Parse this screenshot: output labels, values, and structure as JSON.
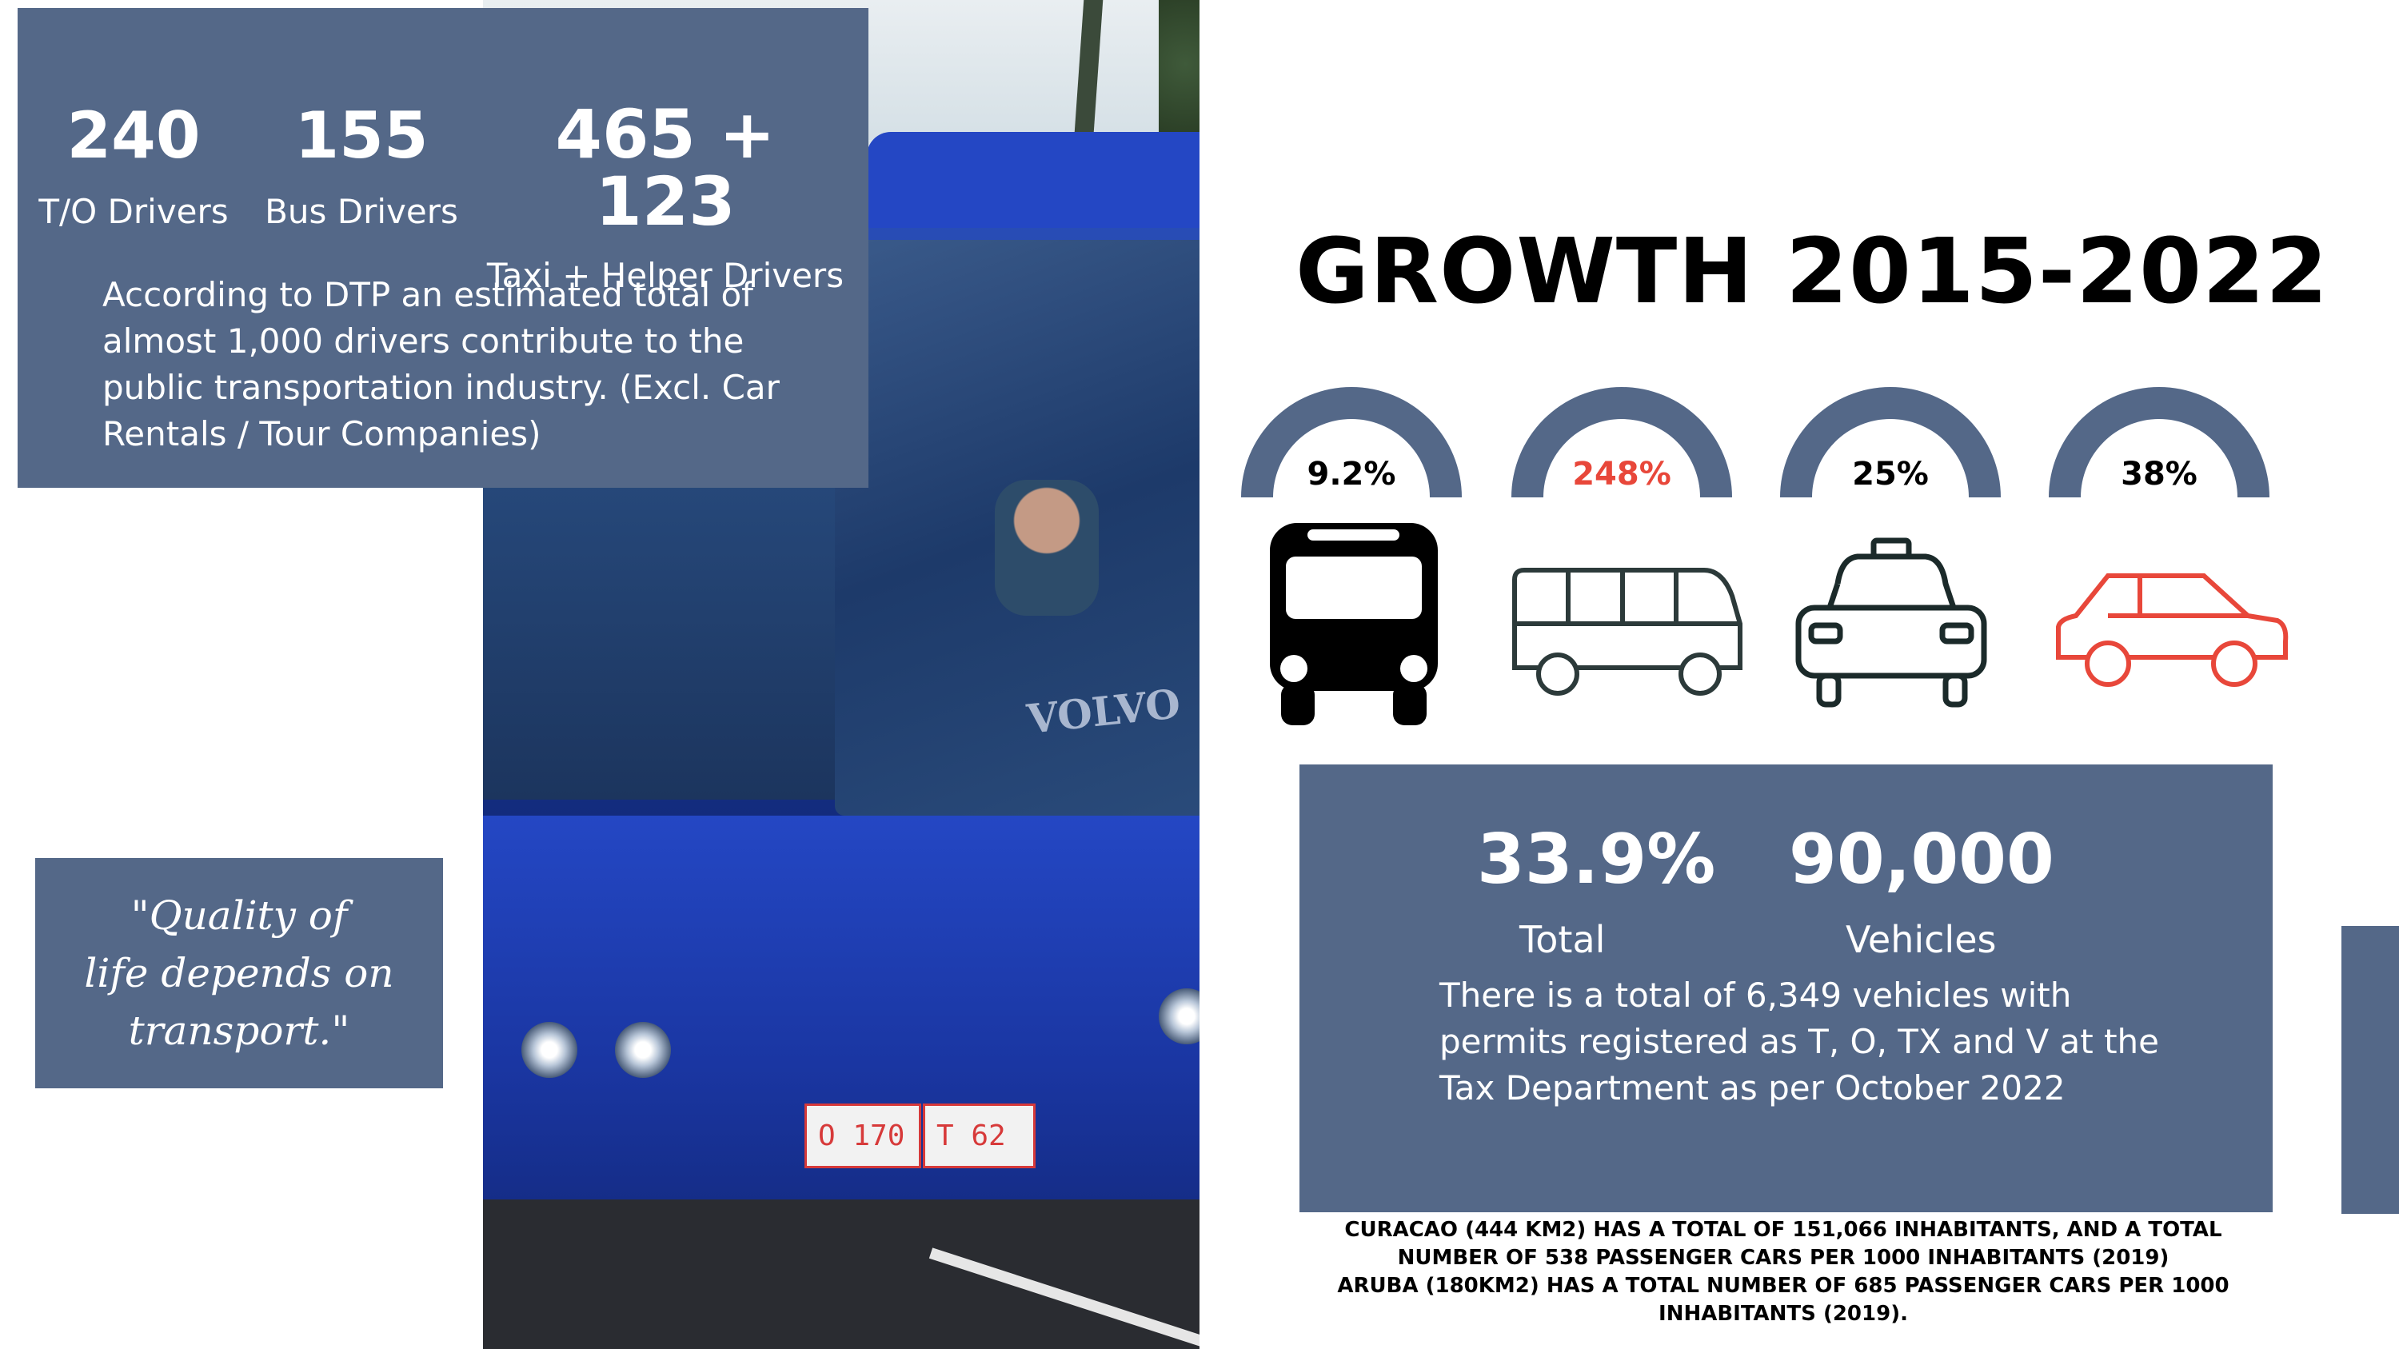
{
  "stats": {
    "to_drivers": {
      "value": "240",
      "label": "T/O Drivers"
    },
    "bus_drivers": {
      "value": "155",
      "label": "Bus Drivers"
    },
    "taxi_drivers": {
      "value": "465 + 123",
      "label": "Taxi + Helper Drivers"
    },
    "description": "According to DTP an estimated total of almost 1,000 drivers contribute to the public transportation industry. (Excl. Car Rentals / Tour Companies)"
  },
  "quote": "\"Quality of\nlife depends on\ntransport.\"",
  "growth": {
    "title": "GROWTH 2015-2022",
    "gauges": [
      {
        "pct": "9.2%",
        "color": "#000000",
        "icon": "bus-front-icon"
      },
      {
        "pct": "248%",
        "color": "#e8473a",
        "icon": "bus-side-icon"
      },
      {
        "pct": "25%",
        "color": "#000000",
        "icon": "taxi-icon"
      },
      {
        "pct": "38%",
        "color": "#000000",
        "icon": "car-icon"
      }
    ],
    "gauge_color": "#546888",
    "accent_color": "#e8473a"
  },
  "summary": {
    "total_value": "33.9%",
    "total_label": "Total",
    "vehicles_value": "90,000",
    "vehicles_label": "Vehicles",
    "description": "There is a total of 6,349 vehicles with permits registered as T, O, TX and V at the Tax Department as per October 2022"
  },
  "footnote": {
    "line1": "Curacao (444 km2) has a total of 151,066 inhabitants, and a total",
    "line2": "number of 538 passenger cars per 1000 inhabitants (2019)",
    "line3": "Aruba (180km2) has a total number of 685 passenger cars per 1000",
    "line4": "inhabitants (2019)."
  },
  "photo": {
    "plate_1": "O 170",
    "plate_2": "T 62",
    "brand": "VOLVO"
  },
  "panel_color": "#546888"
}
